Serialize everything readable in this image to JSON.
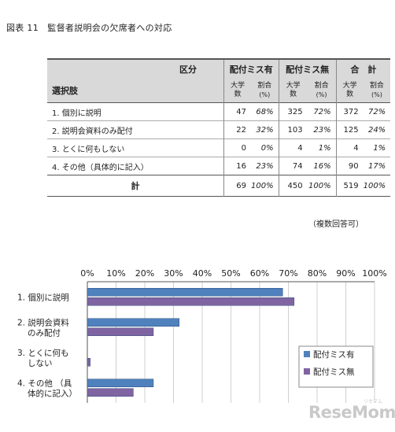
{
  "figure_title": "図表 11　監督者説明会の欠席者への対応",
  "table": {
    "corner_top": "区分",
    "corner_bottom": "選択肢",
    "groups": [
      "配付ミス有",
      "配付ミス無",
      "合　計"
    ],
    "sub_headers": [
      {
        "top": "大学",
        "bottom": "数"
      },
      {
        "top": "割合",
        "bottom": "(%)"
      }
    ],
    "rows": [
      {
        "label": "1. 個別に説明",
        "cells": [
          "47",
          "68%",
          "325",
          "72%",
          "372",
          "72%"
        ]
      },
      {
        "label": "2. 説明会資料のみ配付",
        "cells": [
          "22",
          "32%",
          "103",
          "23%",
          "125",
          "24%"
        ]
      },
      {
        "label": "3. とくに何もしない",
        "cells": [
          "0",
          "0%",
          "4",
          "1%",
          "4",
          "1%"
        ]
      },
      {
        "label": "4. その他（具体的に記入）",
        "cells": [
          "16",
          "23%",
          "74",
          "16%",
          "90",
          "17%"
        ]
      }
    ],
    "total": {
      "label": "計",
      "cells": [
        "69",
        "100%",
        "450",
        "100%",
        "519",
        "100%"
      ]
    },
    "note": "（複数回答可）"
  },
  "chart_data": {
    "type": "bar",
    "orientation": "horizontal",
    "categories": [
      [
        "1.  個別に説明"
      ],
      [
        "2.  説明会資料",
        "のみ配付"
      ],
      [
        "3.  とくに何も",
        "しない"
      ],
      [
        "4.  その他 （具",
        "体的に記入）"
      ]
    ],
    "series": [
      {
        "name": "配付ミス有",
        "values": [
          68,
          32,
          0,
          23
        ],
        "color": "#4f81bd"
      },
      {
        "name": "配付ミス無",
        "values": [
          72,
          23,
          1,
          16
        ],
        "color": "#8064a2"
      }
    ],
    "xlim": [
      0,
      100
    ],
    "tick_labels": [
      "0%",
      "10%",
      "20%",
      "30%",
      "40%",
      "50%",
      "60%",
      "70%",
      "80%",
      "90%",
      "100%"
    ],
    "grid": true,
    "legend_position": "lower-right"
  },
  "watermark": {
    "text": "ReseMom",
    "sub": "リセマム"
  }
}
